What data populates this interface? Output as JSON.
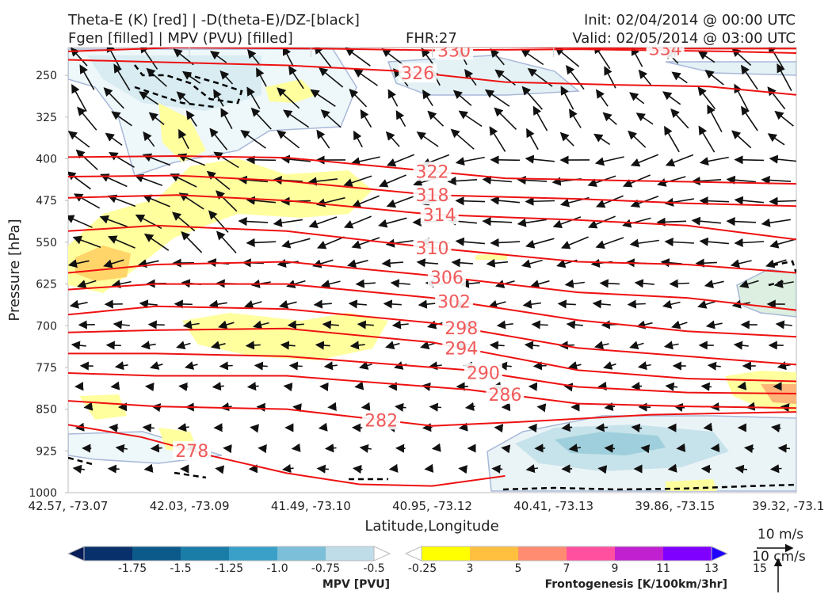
{
  "header": {
    "title_line1": "Theta-E (K) [red] | -D(theta-E)/DZ-[black]",
    "title_line2": "Fgen [filled] | MPV (PVU) [filled]",
    "fhr": "FHR:27",
    "init": "Init: 02/04/2014 @ 00:00 UTC",
    "valid": "Valid: 02/05/2014 @ 03:00 UTC"
  },
  "chart_data": {
    "type": "contour",
    "xlabel": "Latitude,Longitude",
    "ylabel": "Pressure [hPa]",
    "x_ticks": [
      "42.57, -73.07",
      "42.03, -73.09",
      "41.49, -73.10",
      "40.95, -73.12",
      "40.41, -73.13",
      "39.86, -73.15",
      "39.32, -73.1"
    ],
    "y_ticks": [
      250,
      325,
      400,
      475,
      550,
      625,
      700,
      775,
      850,
      925,
      1000
    ],
    "ylim": [
      1000,
      200
    ],
    "theta_e_contours": [
      {
        "label": "330",
        "values": [
          [
            0,
            207
          ],
          [
            0.15,
            200
          ],
          [
            0.35,
            202
          ],
          [
            0.5,
            205
          ],
          [
            0.7,
            203
          ],
          [
            0.9,
            207
          ],
          [
            1,
            210
          ]
        ]
      },
      {
        "label": "334",
        "values": [
          [
            0.4,
            199
          ],
          [
            0.6,
            199
          ],
          [
            0.8,
            202
          ],
          [
            1,
            202
          ]
        ]
      },
      {
        "label": "326",
        "values": [
          [
            0,
            222
          ],
          [
            0.15,
            227
          ],
          [
            0.3,
            232
          ],
          [
            0.45,
            242
          ],
          [
            0.5,
            248
          ],
          [
            0.6,
            262
          ],
          [
            0.75,
            267
          ],
          [
            0.88,
            270
          ],
          [
            1,
            285
          ]
        ]
      },
      {
        "label": "322",
        "values": [
          [
            0,
            397
          ],
          [
            0.15,
            395
          ],
          [
            0.3,
            398
          ],
          [
            0.48,
            420
          ],
          [
            0.6,
            435
          ],
          [
            0.8,
            440
          ],
          [
            1,
            445
          ]
        ]
      },
      {
        "label": "318",
        "values": [
          [
            0,
            432
          ],
          [
            0.15,
            430
          ],
          [
            0.3,
            440
          ],
          [
            0.5,
            465
          ],
          [
            0.7,
            472
          ],
          [
            0.85,
            480
          ],
          [
            1,
            485
          ]
        ]
      },
      {
        "label": "314",
        "values": [
          [
            0,
            470
          ],
          [
            0.15,
            465
          ],
          [
            0.3,
            475
          ],
          [
            0.5,
            500
          ],
          [
            0.7,
            510
          ],
          [
            0.85,
            520
          ],
          [
            1,
            545
          ]
        ]
      },
      {
        "label": "310",
        "values": [
          [
            0,
            530
          ],
          [
            0.12,
            520
          ],
          [
            0.3,
            530
          ],
          [
            0.5,
            560
          ],
          [
            0.7,
            585
          ],
          [
            0.85,
            590
          ],
          [
            1,
            605
          ]
        ]
      },
      {
        "label": "306",
        "values": [
          [
            0,
            605
          ],
          [
            0.12,
            590
          ],
          [
            0.3,
            585
          ],
          [
            0.5,
            610
          ],
          [
            0.7,
            640
          ],
          [
            0.85,
            650
          ],
          [
            1,
            672
          ]
        ]
      },
      {
        "label": "302",
        "values": [
          [
            0,
            635
          ],
          [
            0.12,
            625
          ],
          [
            0.3,
            625
          ],
          [
            0.5,
            650
          ],
          [
            0.7,
            690
          ],
          [
            0.85,
            710
          ],
          [
            1,
            720
          ]
        ]
      },
      {
        "label": "298",
        "values": [
          [
            0,
            680
          ],
          [
            0.12,
            665
          ],
          [
            0.3,
            670
          ],
          [
            0.5,
            695
          ],
          [
            0.7,
            740
          ],
          [
            0.85,
            755
          ],
          [
            1,
            770
          ]
        ]
      },
      {
        "label": "294",
        "values": [
          [
            0,
            712
          ],
          [
            0.12,
            708
          ],
          [
            0.3,
            705
          ],
          [
            0.5,
            730
          ],
          [
            0.7,
            780
          ],
          [
            0.85,
            795
          ],
          [
            1,
            800
          ]
        ]
      },
      {
        "label": "290",
        "values": [
          [
            0,
            750
          ],
          [
            0.12,
            750
          ],
          [
            0.3,
            755
          ],
          [
            0.55,
            780
          ],
          [
            0.7,
            810
          ],
          [
            0.85,
            820
          ],
          [
            1,
            822
          ]
        ]
      },
      {
        "label": "286",
        "values": [
          [
            0,
            785
          ],
          [
            0.12,
            790
          ],
          [
            0.3,
            790
          ],
          [
            0.55,
            815
          ],
          [
            0.7,
            840
          ],
          [
            0.85,
            845
          ],
          [
            1,
            848
          ]
        ]
      },
      {
        "label": "282",
        "values": [
          [
            0,
            835
          ],
          [
            0.12,
            845
          ],
          [
            0.3,
            850
          ],
          [
            0.5,
            880
          ],
          [
            0.62,
            873
          ],
          [
            0.8,
            860
          ],
          [
            1,
            855
          ]
        ]
      },
      {
        "label": "278",
        "values": [
          [
            0,
            878
          ],
          [
            0.1,
            900
          ],
          [
            0.2,
            935
          ],
          [
            0.3,
            965
          ],
          [
            0.4,
            985
          ],
          [
            0.5,
            988
          ],
          [
            0.6,
            970
          ]
        ]
      }
    ],
    "frontogenesis_scale": {
      "label": "Frontogenesis [K/100km/3hr]",
      "ticks": [
        "3",
        "5",
        "7",
        "9",
        "11",
        "13",
        "15"
      ],
      "colors": [
        "#ffffff",
        "#ffff00",
        "#ffc040",
        "#ff8c70",
        "#ff50a0",
        "#c020d0",
        "#8000ff",
        "#2000ff"
      ]
    },
    "mpv_scale": {
      "label": "MPV [PVU]",
      "ticks": [
        "-1.75",
        "-1.5",
        "-1.25",
        "-1.0",
        "-0.75",
        "-0.5",
        "-0.25"
      ],
      "colors": [
        "#081d58",
        "#08306b",
        "#0c5a8a",
        "#1a7da8",
        "#3aa0c8",
        "#7bbfd8",
        "#bfdde8",
        "#ffffff"
      ]
    },
    "reference_vectors": {
      "horizontal": "10 m/s",
      "vertical": "10 cm/s"
    }
  }
}
